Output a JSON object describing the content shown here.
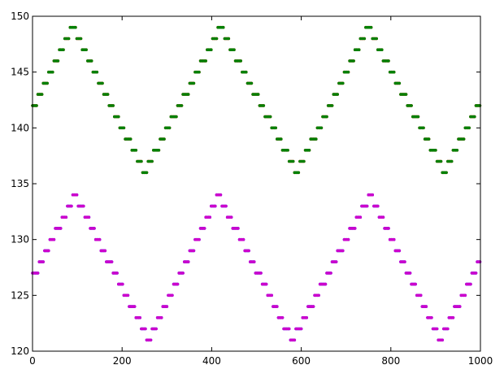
{
  "chart_data": {
    "type": "scatter",
    "title": "",
    "xlabel": "",
    "ylabel": "",
    "xlim": [
      0,
      1000
    ],
    "ylim": [
      120,
      150
    ],
    "xticks": [
      0,
      200,
      400,
      600,
      800,
      1000
    ],
    "yticks": [
      120,
      125,
      130,
      135,
      140,
      145,
      150
    ],
    "xtick_labels": [
      "0",
      "200",
      "400",
      "600",
      "800",
      "1000"
    ],
    "ytick_labels": [
      "120",
      "125",
      "130",
      "135",
      "140",
      "145",
      "150"
    ],
    "grid": false,
    "legend": "none",
    "series": [
      {
        "color": "#ff0000",
        "marker": "dot",
        "pattern": "triangle-wave",
        "x_start": 0,
        "x_end": 1000,
        "x_step": 3,
        "min": 136,
        "max": 149,
        "minimum_at_x": [
          250,
          590,
          920
        ],
        "maximum_at_x": [
          90,
          420,
          750
        ]
      },
      {
        "color": "#008000",
        "marker": "dot",
        "pattern": "triangle-wave",
        "x_start": 0,
        "x_end": 1000,
        "x_step": 3,
        "min": 136,
        "max": 149,
        "minimum_at_x": [
          250,
          590,
          920
        ],
        "maximum_at_x": [
          90,
          420,
          750
        ]
      },
      {
        "color": "#0000ff",
        "marker": "dot",
        "pattern": "triangle-wave",
        "x_start": 0,
        "x_end": 1000,
        "x_step": 3,
        "min": 121,
        "max": 134,
        "minimum_at_x": [
          260,
          580,
          910
        ],
        "maximum_at_x": [
          95,
          415,
          755
        ]
      },
      {
        "color": "#cc00cc",
        "marker": "dot",
        "pattern": "triangle-wave",
        "x_start": 0,
        "x_end": 1000,
        "x_step": 3,
        "min": 121,
        "max": 134,
        "minimum_at_x": [
          260,
          580,
          910
        ],
        "maximum_at_x": [
          95,
          415,
          755
        ]
      }
    ]
  }
}
